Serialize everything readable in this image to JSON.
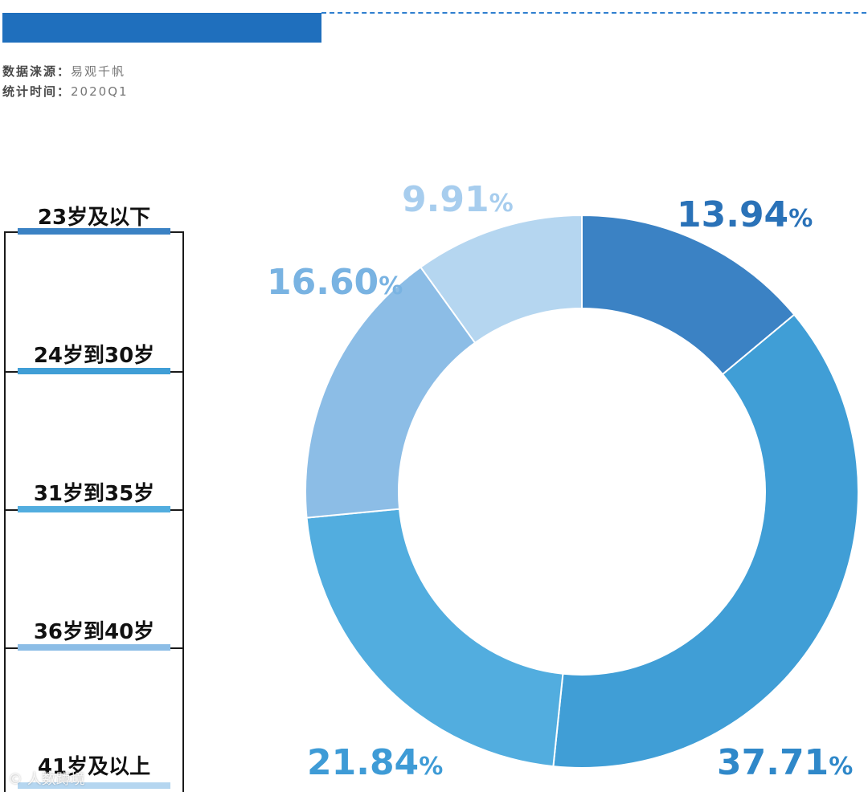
{
  "meta": {
    "source_key": "数据涞源：",
    "source_value": "易观千帆",
    "time_key": "统计时间：",
    "time_value": "2020Q1"
  },
  "watermark": "© 人数蹲境",
  "chart_data": {
    "type": "pie",
    "donut": true,
    "categories": [
      "23岁及以下",
      "24岁到30岁",
      "31岁到35岁",
      "36岁到40岁",
      "41岁及以上"
    ],
    "values": [
      13.94,
      37.71,
      21.84,
      16.6,
      9.91
    ],
    "labels": [
      "13.94",
      "37.71",
      "21.84",
      "16.60",
      "9.91"
    ],
    "unit": "%",
    "colors": [
      "#3b82c4",
      "#409ed6",
      "#52addf",
      "#8cbde6",
      "#b5d6f0"
    ],
    "legend": "left"
  }
}
